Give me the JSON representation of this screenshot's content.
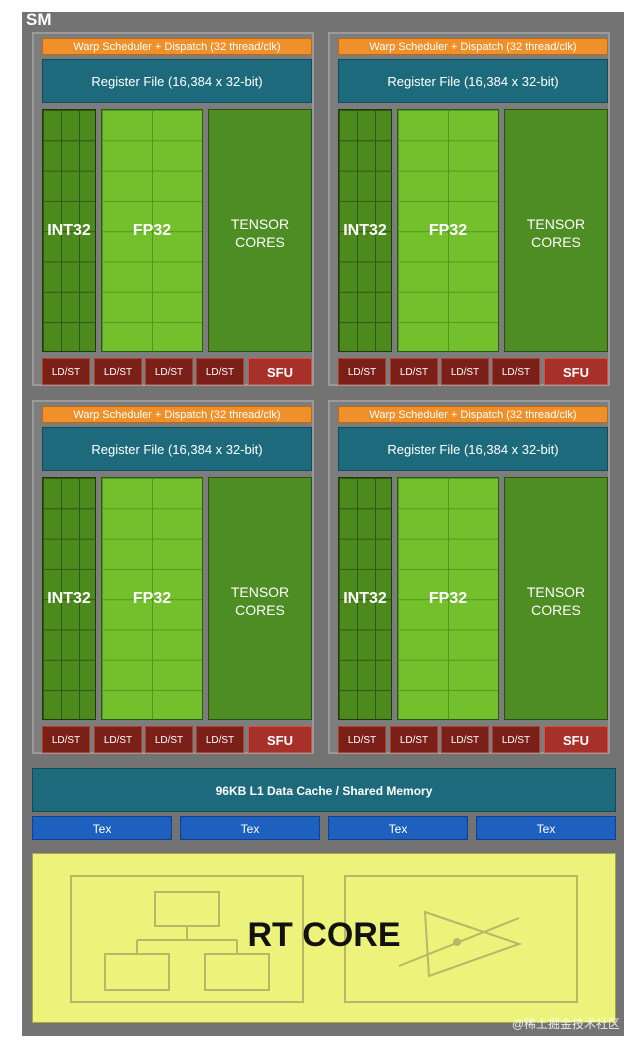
{
  "sm_label": "SM",
  "quadrant": {
    "warp_scheduler": "Warp Scheduler + Dispatch (32 thread/clk)",
    "register_file": "Register File (16,384 x 32-bit)",
    "int32": "INT32",
    "fp32": "FP32",
    "tensor_line1": "TENSOR",
    "tensor_line2": "CORES",
    "ldst": "LD/ST",
    "sfu": "SFU"
  },
  "l1_cache": "96KB L1 Data Cache / Shared Memory",
  "tex": "Tex",
  "rt_core": "RT CORE",
  "watermark": "@稀土掘金技术社区",
  "colors": {
    "warp": "#f0902a",
    "register_file": "#1e6a7d",
    "int32": "#4c8a1e",
    "fp32": "#74c02c",
    "tensor": "#4e8c24",
    "ldst": "#7a2018",
    "sfu": "#a8302a",
    "tex": "#1e60c0",
    "rt_core": "#ecf27a"
  }
}
